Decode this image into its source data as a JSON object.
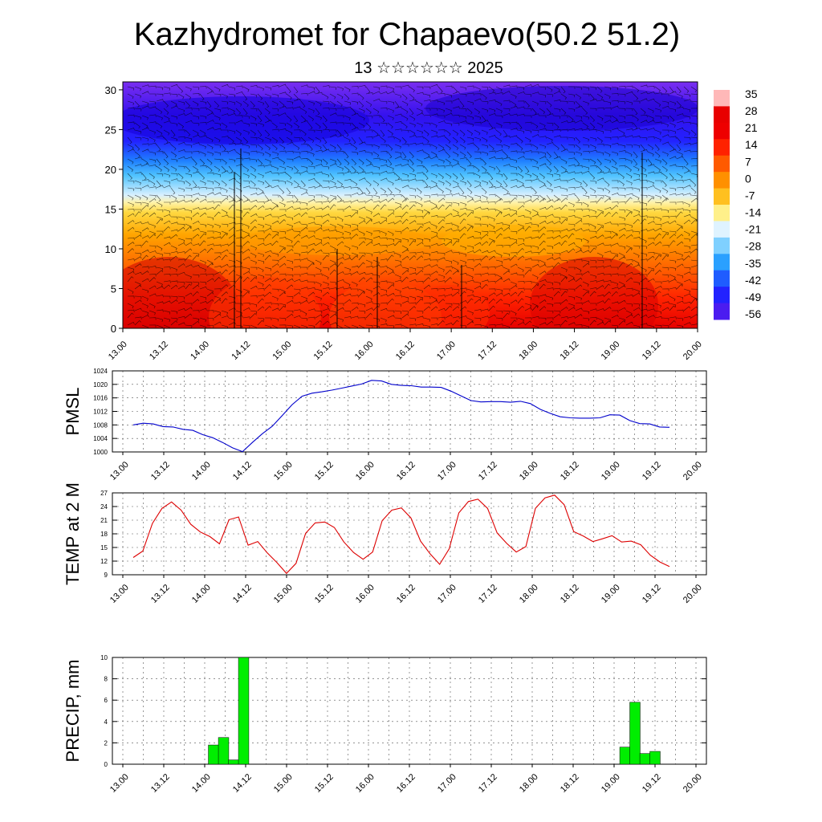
{
  "header": {
    "title": "Kazhydromet for Chapaevo(50.2 51.2)",
    "subtitle": "13 ☆☆☆☆☆☆ 2025"
  },
  "colors": {
    "pmsl_line": "#0000cc",
    "temp_line": "#dd0000",
    "precip_bar": "#00ee00",
    "barb": "#000000",
    "colormap": [
      "#8a2be2",
      "#3300ff",
      "#1f1fff",
      "#2f7fff",
      "#33b5ff",
      "#9fd7ff",
      "#ffef7a",
      "#ffc830",
      "#ff9000",
      "#ff5000",
      "#ff1a00",
      "#e00000",
      "#ffb5b5"
    ]
  },
  "chart_data": [
    {
      "type": "heatmap",
      "name": "cross-section",
      "x_ticks": [
        "13.00",
        "13.12",
        "14.00",
        "14.12",
        "15.00",
        "15.12",
        "16.00",
        "16.12",
        "17.00",
        "17.12",
        "18.00",
        "18.12",
        "19.00",
        "19.12",
        "20.00"
      ],
      "y_ticks": [
        "0",
        "5",
        "10",
        "15",
        "20",
        "25",
        "30"
      ],
      "ylim": [
        0,
        31
      ],
      "colorbar_labels": [
        "35",
        "28",
        "21",
        "14",
        "7",
        "0",
        "-7",
        "-14",
        "-21",
        "-28",
        "-35",
        "-42",
        "-49",
        "-56"
      ]
    },
    {
      "type": "line",
      "name": "pmsl",
      "ylabel": "PMSL",
      "ylim": [
        1000,
        1024
      ],
      "y_ticks": [
        "1024",
        "1020",
        "1016",
        "1012",
        "1008",
        "1004",
        "1000"
      ],
      "x_ticks": [
        "13.00",
        "13.12",
        "14.00",
        "14.12",
        "15.00",
        "15.12",
        "16.00",
        "16.12",
        "17.00",
        "17.12",
        "18.00",
        "18.12",
        "19.00",
        "19.12",
        "20.00"
      ],
      "series": [
        {
          "values": [
            1008.0,
            1008.5,
            1008.3,
            1007.5,
            1007.4,
            1006.7,
            1006.4,
            1005.1,
            1004.2,
            1002.8,
            1001.2,
            1000.1,
            1002.8,
            1005.4,
            1007.6,
            1010.8,
            1014.0,
            1016.5,
            1017.4,
            1017.8,
            1018.3,
            1018.9,
            1019.5,
            1020.1,
            1021.2,
            1021.0,
            1020.0,
            1019.7,
            1019.6,
            1019.2,
            1019.2,
            1019.1,
            1018.0,
            1016.6,
            1015.2,
            1014.8,
            1014.9,
            1014.9,
            1014.7,
            1015.0,
            1014.3,
            1012.6,
            1011.4,
            1010.4,
            1010.1,
            1010.0,
            1010.0,
            1010.1,
            1011.0,
            1010.9,
            1009.3,
            1008.4,
            1008.3,
            1007.4,
            1007.3
          ]
        }
      ]
    },
    {
      "type": "line",
      "name": "temp",
      "ylabel": "TEMP at 2 M",
      "ylim": [
        9,
        27
      ],
      "y_ticks": [
        "27",
        "24",
        "21",
        "18",
        "15",
        "12",
        "9"
      ],
      "x_ticks": [
        "13.00",
        "13.12",
        "14.00",
        "14.12",
        "15.00",
        "15.12",
        "16.00",
        "16.12",
        "17.00",
        "17.12",
        "18.00",
        "18.12",
        "19.00",
        "19.12",
        "20.00"
      ],
      "series": [
        {
          "values": [
            12.8,
            14.2,
            20.3,
            23.6,
            25.0,
            23.2,
            20.1,
            18.4,
            17.4,
            15.8,
            21.1,
            21.7,
            15.5,
            16.3,
            13.8,
            11.7,
            9.3,
            11.5,
            18.1,
            20.4,
            20.6,
            19.4,
            16.2,
            13.9,
            12.4,
            14.0,
            20.9,
            23.2,
            23.7,
            21.5,
            16.4,
            13.6,
            11.3,
            14.7,
            22.6,
            25.1,
            25.6,
            23.6,
            18.2,
            15.9,
            14.0,
            15.2,
            23.6,
            25.9,
            26.5,
            24.4,
            18.5,
            17.5,
            16.3,
            16.9,
            17.6,
            16.2,
            16.4,
            15.6,
            13.3,
            11.8,
            10.8
          ]
        }
      ]
    },
    {
      "type": "bar",
      "name": "precip",
      "ylabel": "PRECIP, mm",
      "ylim": [
        0,
        10
      ],
      "y_ticks": [
        "10",
        "8",
        "6",
        "4",
        "2",
        "0"
      ],
      "x_ticks": [
        "13.00",
        "13.12",
        "14.00",
        "14.12",
        "15.00",
        "15.12",
        "16.00",
        "16.12",
        "17.00",
        "17.12",
        "18.00",
        "18.12",
        "19.00",
        "19.12",
        "20.00"
      ],
      "bars": [
        {
          "x": 14.0,
          "value": 1.8
        },
        {
          "x": 14.125,
          "value": 2.5
        },
        {
          "x": 14.25,
          "value": 0.4
        },
        {
          "x": 14.375,
          "value": 10.0
        },
        {
          "x": 19.125,
          "value": 1.6
        },
        {
          "x": 19.25,
          "value": 5.8
        },
        {
          "x": 19.375,
          "value": 1.0
        },
        {
          "x": 19.5,
          "value": 1.2
        }
      ]
    }
  ]
}
